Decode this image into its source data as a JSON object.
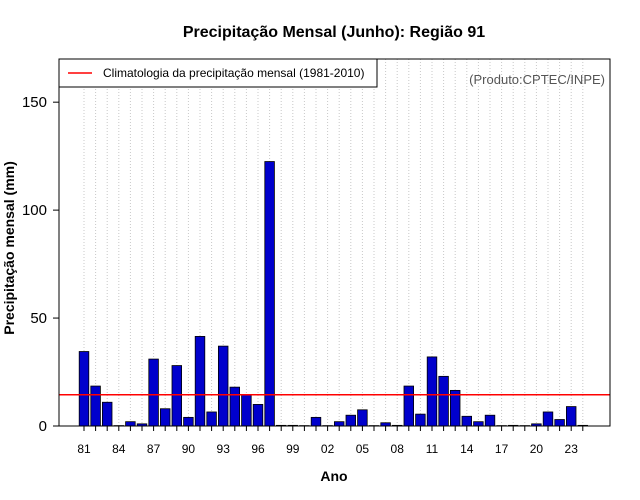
{
  "chart_data": {
    "type": "bar",
    "title": "Precipitação Mensal (Junho): Região 91",
    "xlabel": "Ano",
    "ylabel": "Precipitação mensal (mm)",
    "ylim": [
      0,
      170
    ],
    "yticks": [
      0,
      50,
      100,
      150
    ],
    "grid": "vertical dotted",
    "bar_color": "#0000cc",
    "reference_line_color": "#ff0000",
    "categories": [
      "81",
      "82",
      "83",
      "84",
      "85",
      "86",
      "87",
      "88",
      "89",
      "90",
      "91",
      "92",
      "93",
      "94",
      "95",
      "96",
      "97",
      "98",
      "99",
      "00",
      "01",
      "02",
      "03",
      "04",
      "05",
      "06",
      "07",
      "08",
      "09",
      "10",
      "11",
      "12",
      "13",
      "14",
      "15",
      "16",
      "17",
      "18",
      "19",
      "20",
      "21",
      "22",
      "23",
      "24"
    ],
    "tick_labels": [
      "81",
      "84",
      "87",
      "90",
      "93",
      "96",
      "99",
      "02",
      "05",
      "08",
      "11",
      "14",
      "17",
      "20",
      "23"
    ],
    "values": [
      34.5,
      18.5,
      11,
      0,
      2,
      1,
      31,
      8,
      28,
      4,
      41.5,
      6.5,
      37,
      18,
      14.5,
      10,
      122.5,
      0.3,
      0.3,
      0,
      4,
      0,
      2,
      5,
      7.5,
      0,
      1.5,
      0.3,
      18.5,
      5.5,
      32,
      23,
      16.5,
      4.5,
      2,
      5,
      0,
      0.3,
      0,
      1,
      6.5,
      3,
      9,
      0.3
    ],
    "climatology": {
      "label": "Climatologia da precipitação mensal (1981-2010)",
      "value": 14.5
    },
    "legend_position": "top-left",
    "credit": "(Produto:CPTEC/INPE)"
  }
}
